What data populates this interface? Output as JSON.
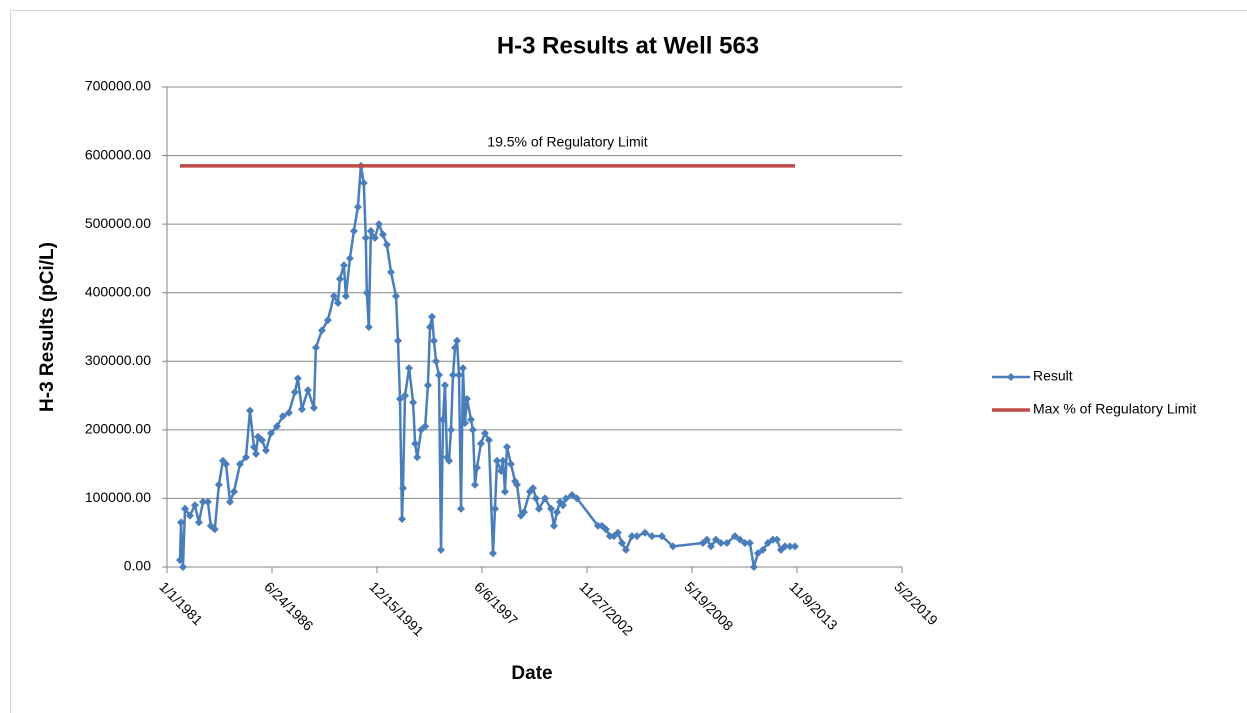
{
  "chart_data": {
    "type": "line",
    "title": "H-3 Results at Well 563",
    "x_label": "Date",
    "y_label": "H-3 Results (pCi/L)",
    "annotation": "19.5% of Regulatory Limit",
    "xlim": [
      "1981-01-01",
      "2019-05-02"
    ],
    "xticks": [
      {
        "value": "1981-01-01",
        "label": "1/1/1981"
      },
      {
        "value": "1986-06-24",
        "label": "6/24/1986"
      },
      {
        "value": "1991-12-15",
        "label": "12/15/1991"
      },
      {
        "value": "1997-06-06",
        "label": "6/6/1997"
      },
      {
        "value": "2002-11-27",
        "label": "11/27/2002"
      },
      {
        "value": "2008-05-19",
        "label": "5/19/2008"
      },
      {
        "value": "2013-11-09",
        "label": "11/9/2013"
      },
      {
        "value": "2019-05-02",
        "label": "5/2/2019"
      }
    ],
    "ylim": [
      0,
      700000
    ],
    "yticks": [
      {
        "value": 0,
        "label": "0.00"
      },
      {
        "value": 100000,
        "label": "100000.00"
      },
      {
        "value": 200000,
        "label": "200000.00"
      },
      {
        "value": 300000,
        "label": "300000.00"
      },
      {
        "value": 400000,
        "label": "400000.00"
      },
      {
        "value": 500000,
        "label": "500000.00"
      },
      {
        "value": 600000,
        "label": "600000.00"
      },
      {
        "value": 700000,
        "label": "700000.00"
      }
    ],
    "grid": true,
    "legend": "right",
    "series": [
      {
        "name": "Result",
        "color": "#4a7ebb",
        "marker": "diamond",
        "x": [
          "1981-09-05",
          "1981-09-24",
          "1981-11-01",
          "1981-12-10",
          "1982-03-14",
          "1982-06-17",
          "1982-09-01",
          "1982-11-17",
          "1983-02-20",
          "1983-04-16",
          "1983-07-01",
          "1983-09-16",
          "1983-12-02",
          "1984-01-29",
          "1984-04-15",
          "1984-06-30",
          "1984-10-22",
          "1985-02-14",
          "1985-05-01",
          "1985-07-16",
          "1985-08-23",
          "1985-09-30",
          "1985-12-15",
          "1986-03-01",
          "1986-06-04",
          "1986-09-26",
          "1987-01-18",
          "1987-05-12",
          "1987-09-03",
          "1987-10-30",
          "1988-01-15",
          "1988-05-08",
          "1988-08-31",
          "1988-10-08",
          "1989-01-30",
          "1989-05-24",
          "1989-09-15",
          "1989-12-01",
          "1990-01-08",
          "1990-03-25",
          "1990-05-02",
          "1990-07-17",
          "1990-10-01",
          "1990-12-16",
          "1991-02-12",
          "1991-04-08",
          "1991-05-16",
          "1991-06-04",
          "1991-07-12",
          "1991-08-20",
          "1991-11-04",
          "1992-01-20",
          "1992-04-06",
          "1992-06-21",
          "1992-09-06",
          "1992-12-10",
          "1993-01-18",
          "1993-02-25",
          "1993-04-05",
          "1993-04-24",
          "1993-06-01",
          "1993-08-17",
          "1993-11-02",
          "1993-12-10",
          "1994-01-18",
          "1994-04-04",
          "1994-06-20",
          "1994-08-11",
          "1994-09-19",
          "1994-10-27",
          "1994-12-04",
          "1995-01-12",
          "1995-03-10",
          "1995-04-17",
          "1995-05-25",
          "1995-07-02",
          "1995-08-10",
          "1995-09-17",
          "1995-10-25",
          "1995-12-02",
          "1996-01-09",
          "1996-02-16",
          "1996-03-25",
          "1996-05-02",
          "1996-06-09",
          "1996-07-17",
          "1996-08-24",
          "1996-11-08",
          "1996-12-16",
          "1997-01-23",
          "1997-03-02",
          "1997-05-17",
          "1997-08-01",
          "1997-10-16",
          "1998-01-01",
          "1998-02-09",
          "1998-03-19",
          "1998-06-03",
          "1998-07-11",
          "1998-08-18",
          "1998-09-25",
          "1998-12-10",
          "1999-02-25",
          "1999-04-03",
          "1999-06-18",
          "1999-08-14",
          "1999-12-06",
          "2000-02-02",
          "2000-03-30",
          "2000-05-26",
          "2000-09-18",
          "2001-01-10",
          "2001-03-08",
          "2001-05-04",
          "2001-07-01",
          "2001-08-27",
          "2001-10-23",
          "2002-02-14",
          "2002-05-20",
          "2003-06-24",
          "2003-09-08",
          "2003-11-23",
          "2004-02-06",
          "2004-04-22",
          "2004-07-07",
          "2004-09-22",
          "2004-12-07",
          "2005-04-01",
          "2005-07-05",
          "2005-12-05",
          "2006-04-16",
          "2006-10-23",
          "2007-05-21",
          "2008-12-13",
          "2009-02-28",
          "2009-05-15",
          "2009-08-17",
          "2009-11-20",
          "2010-03-14",
          "2010-08-14",
          "2010-11-17",
          "2011-02-20",
          "2011-05-26",
          "2011-08-11",
          "2011-10-26",
          "2012-01-29",
          "2012-05-03",
          "2012-08-06",
          "2012-10-22",
          "2013-01-07",
          "2013-03-25",
          "2013-06-28",
          "2013-10-01"
        ],
        "values": [
          10000,
          65000,
          0,
          85000,
          75000,
          90000,
          65000,
          95000,
          95000,
          60000,
          55000,
          120000,
          155000,
          150000,
          95000,
          110000,
          150000,
          160000,
          228000,
          175000,
          165000,
          190000,
          185000,
          170000,
          195000,
          205000,
          220000,
          225000,
          255000,
          275000,
          230000,
          258000,
          232000,
          320000,
          345000,
          360000,
          395000,
          385000,
          420000,
          440000,
          395000,
          450000,
          490000,
          525000,
          585000,
          560000,
          480000,
          400000,
          350000,
          490000,
          480000,
          500000,
          485000,
          470000,
          430000,
          395000,
          330000,
          245000,
          70000,
          115000,
          250000,
          290000,
          240000,
          180000,
          160000,
          200000,
          205000,
          265000,
          350000,
          365000,
          330000,
          300000,
          280000,
          25000,
          215000,
          265000,
          160000,
          155000,
          200000,
          280000,
          320000,
          330000,
          280000,
          85000,
          290000,
          210000,
          245000,
          215000,
          200000,
          120000,
          145000,
          180000,
          195000,
          185000,
          20000,
          85000,
          155000,
          140000,
          155000,
          110000,
          175000,
          150000,
          125000,
          120000,
          75000,
          80000,
          110000,
          115000,
          100000,
          85000,
          100000,
          85000,
          60000,
          80000,
          95000,
          90000,
          100000,
          105000,
          100000,
          60000,
          60000,
          55000,
          45000,
          45000,
          50000,
          35000,
          25000,
          45000,
          45000,
          50000,
          45000,
          45000,
          30000,
          35000,
          40000,
          30000,
          40000,
          35000,
          35000,
          45000,
          40000,
          35000,
          35000,
          0,
          20000,
          25000,
          35000,
          40000,
          40000,
          25000,
          30000,
          30000,
          30000
        ]
      },
      {
        "name": "Max % of Regulatory Limit",
        "color": "#be4b48",
        "x": [
          "1981-09-05",
          "2013-10-01"
        ],
        "values": [
          585000,
          585000
        ]
      }
    ]
  }
}
